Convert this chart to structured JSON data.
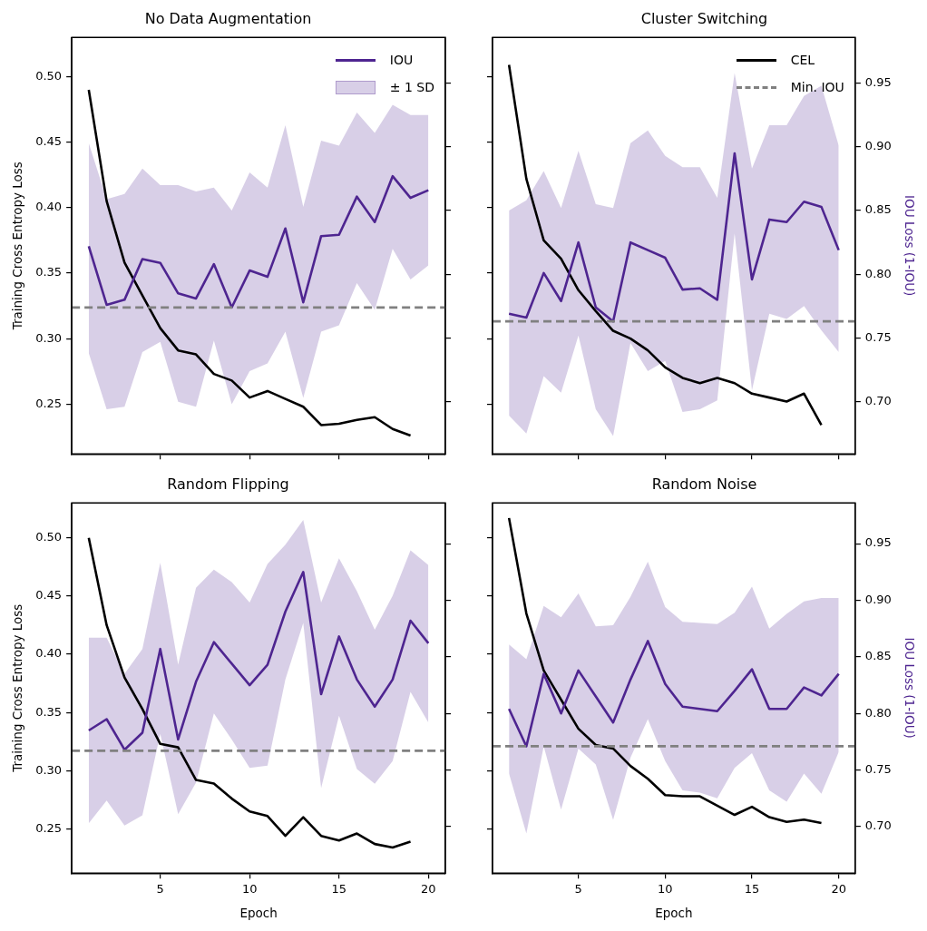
{
  "chart_data": [
    {
      "type": "line",
      "title": "No Data Augmentation",
      "ylabel": "Training Cross Entropy Loss",
      "annotations": [
        "± 1 SD"
      ],
      "x": [
        1,
        2,
        3,
        4,
        5,
        6,
        7,
        8,
        9,
        10,
        11,
        12,
        13,
        14,
        15,
        16,
        17,
        18,
        19,
        20
      ],
      "xlim": [
        0.05,
        20.95
      ],
      "ylim": [
        0.212,
        0.53
      ],
      "yticks": [
        {
          "value": 0.25,
          "label": "0.25"
        },
        {
          "value": 0.3,
          "label": "0.30"
        },
        {
          "value": 0.35,
          "label": "0.35"
        },
        {
          "value": 0.4,
          "label": "0.40"
        },
        {
          "value": 0.45,
          "label": "0.45"
        },
        {
          "value": 0.5,
          "label": "0.50"
        }
      ],
      "y2lim": [
        0.659,
        0.986
      ],
      "grid": false,
      "legend": "top right",
      "marker": "none",
      "tick_labels": "y",
      "series": [
        {
          "name": "IOU",
          "axis": "y2",
          "color": "#4e2590",
          "values": [
            0.822,
            0.776,
            0.78,
            0.812,
            0.809,
            0.785,
            0.781,
            0.808,
            0.774,
            0.803,
            0.798,
            0.836,
            0.778,
            0.83,
            0.831,
            0.861,
            0.841,
            0.877,
            0.86,
            0.866
          ],
          "lower": [
            0.738,
            0.694,
            0.696,
            0.739,
            0.747,
            0.7,
            0.696,
            0.748,
            0.698,
            0.724,
            0.73,
            0.755,
            0.703,
            0.755,
            0.76,
            0.793,
            0.772,
            0.82,
            0.796,
            0.807
          ],
          "upper": [
            0.903,
            0.859,
            0.863,
            0.883,
            0.87,
            0.87,
            0.865,
            0.868,
            0.85,
            0.88,
            0.868,
            0.917,
            0.853,
            0.905,
            0.901,
            0.927,
            0.911,
            0.933,
            0.925,
            0.925
          ]
        },
        {
          "color": "#000000",
          "x": [
            1,
            2,
            3,
            4,
            5,
            6,
            7,
            8,
            9,
            10,
            11,
            12,
            13,
            14,
            15,
            16,
            17,
            18,
            19
          ],
          "values": [
            0.49,
            0.405,
            0.358,
            0.333,
            0.308,
            0.291,
            0.288,
            0.273,
            0.268,
            0.255,
            0.26,
            0.254,
            0.248,
            0.234,
            0.235,
            0.238,
            0.24,
            0.231,
            0.226
          ]
        }
      ],
      "ref_lines": [
        {
          "axis": "y2",
          "value": 0.774,
          "color": "#808080",
          "line_style": "dashed"
        }
      ]
    },
    {
      "type": "line",
      "title": "Cluster Switching",
      "y2label": "IOU Loss (1-IOU)",
      "x": [
        1,
        2,
        3,
        4,
        5,
        6,
        7,
        8,
        9,
        10,
        11,
        12,
        13,
        14,
        15,
        16,
        17,
        18,
        19,
        20
      ],
      "xlim": [
        0.05,
        20.95
      ],
      "ylim": [
        0.212,
        0.53
      ],
      "y2lim": [
        0.659,
        0.986
      ],
      "y2ticks": [
        {
          "value": 0.7,
          "label": "0.70"
        },
        {
          "value": 0.75,
          "label": "0.75"
        },
        {
          "value": 0.8,
          "label": "0.80"
        },
        {
          "value": 0.85,
          "label": "0.85"
        },
        {
          "value": 0.9,
          "label": "0.90"
        },
        {
          "value": 0.95,
          "label": "0.95"
        }
      ],
      "grid": false,
      "legend": "top right",
      "marker": "none",
      "tick_labels": "y2",
      "series": [
        {
          "axis": "y2",
          "color": "#4e2590",
          "values": [
            0.769,
            0.766,
            0.801,
            0.779,
            0.825,
            0.774,
            0.763,
            0.825,
            0.819,
            0.813,
            0.788,
            0.789,
            0.78,
            0.895,
            0.796,
            0.843,
            0.841,
            0.857,
            0.853,
            0.819
          ],
          "lower": [
            0.689,
            0.675,
            0.72,
            0.707,
            0.752,
            0.694,
            0.673,
            0.746,
            0.724,
            0.732,
            0.692,
            0.694,
            0.701,
            0.832,
            0.709,
            0.769,
            0.765,
            0.775,
            0.756,
            0.739
          ],
          "upper": [
            0.85,
            0.858,
            0.881,
            0.852,
            0.897,
            0.855,
            0.852,
            0.903,
            0.913,
            0.893,
            0.884,
            0.884,
            0.86,
            0.958,
            0.883,
            0.917,
            0.917,
            0.94,
            0.948,
            0.901
          ]
        },
        {
          "name": "CEL",
          "color": "#000000",
          "x": [
            1,
            2,
            3,
            4,
            5,
            6,
            7,
            8,
            9,
            10,
            11,
            12,
            13,
            14,
            15,
            16,
            17,
            18,
            19
          ],
          "values": [
            0.509,
            0.422,
            0.375,
            0.361,
            0.337,
            0.321,
            0.306,
            0.3,
            0.291,
            0.278,
            0.27,
            0.266,
            0.27,
            0.266,
            0.258,
            0.255,
            0.252,
            0.258,
            0.234
          ]
        }
      ],
      "ref_lines": [
        {
          "axis": "y2",
          "value": 0.763,
          "label": "Min. IOU",
          "color": "#808080",
          "line_style": "dashed"
        }
      ]
    },
    {
      "type": "line",
      "title": "Random Flipping",
      "xlabel": "Epoch",
      "ylabel": "Training Cross Entropy Loss",
      "x": [
        1,
        2,
        3,
        4,
        5,
        6,
        7,
        8,
        9,
        10,
        11,
        12,
        13,
        14,
        15,
        16,
        17,
        18,
        19,
        20
      ],
      "xlim": [
        0.05,
        20.95
      ],
      "xticks": [
        5,
        10,
        15,
        20
      ],
      "ylim": [
        0.212,
        0.53
      ],
      "yticks": [
        {
          "value": 0.25,
          "label": "0.25"
        },
        {
          "value": 0.3,
          "label": "0.30"
        },
        {
          "value": 0.35,
          "label": "0.35"
        },
        {
          "value": 0.4,
          "label": "0.40"
        },
        {
          "value": 0.45,
          "label": "0.45"
        },
        {
          "value": 0.5,
          "label": "0.50"
        }
      ],
      "y2lim": [
        0.659,
        0.986
      ],
      "grid": false,
      "marker": "none",
      "tick_labels": [
        "x",
        "y"
      ],
      "series": [
        {
          "axis": "y2",
          "color": "#4e2590",
          "values": [
            0.785,
            0.795,
            0.768,
            0.783,
            0.857,
            0.777,
            0.828,
            0.863,
            0.844,
            0.825,
            0.843,
            0.89,
            0.925,
            0.817,
            0.868,
            0.83,
            0.806,
            0.83,
            0.882,
            0.862
          ],
          "lower": [
            0.703,
            0.723,
            0.701,
            0.71,
            0.782,
            0.711,
            0.739,
            0.8,
            0.777,
            0.752,
            0.754,
            0.83,
            0.88,
            0.734,
            0.798,
            0.751,
            0.738,
            0.758,
            0.819,
            0.792
          ],
          "upper": [
            0.867,
            0.867,
            0.835,
            0.857,
            0.933,
            0.843,
            0.911,
            0.927,
            0.916,
            0.898,
            0.932,
            0.949,
            0.971,
            0.898,
            0.937,
            0.908,
            0.874,
            0.904,
            0.944,
            0.931
          ]
        },
        {
          "color": "#000000",
          "x": [
            1,
            2,
            3,
            4,
            5,
            6,
            7,
            8,
            9,
            10,
            11,
            12,
            13,
            14,
            15,
            16,
            17,
            18,
            19
          ],
          "values": [
            0.5,
            0.425,
            0.38,
            0.353,
            0.323,
            0.32,
            0.292,
            0.289,
            0.276,
            0.265,
            0.261,
            0.244,
            0.26,
            0.244,
            0.24,
            0.246,
            0.237,
            0.234,
            0.239
          ]
        }
      ],
      "ref_lines": [
        {
          "axis": "y2",
          "value": 0.767,
          "color": "#808080",
          "line_style": "dashed"
        }
      ]
    },
    {
      "type": "line",
      "title": "Random Noise",
      "xlabel": "Epoch",
      "y2label": "IOU Loss (1-IOU)",
      "x": [
        1,
        2,
        3,
        4,
        5,
        6,
        7,
        8,
        9,
        10,
        11,
        12,
        13,
        14,
        15,
        16,
        17,
        18,
        19,
        20
      ],
      "xlim": [
        0.05,
        20.95
      ],
      "xticks": [
        5,
        10,
        15,
        20
      ],
      "ylim": [
        0.212,
        0.53
      ],
      "y2lim": [
        0.659,
        0.986
      ],
      "y2ticks": [
        {
          "value": 0.7,
          "label": "0.70"
        },
        {
          "value": 0.75,
          "label": "0.75"
        },
        {
          "value": 0.8,
          "label": "0.80"
        },
        {
          "value": 0.85,
          "label": "0.85"
        },
        {
          "value": 0.9,
          "label": "0.90"
        },
        {
          "value": 0.95,
          "label": "0.95"
        }
      ],
      "grid": false,
      "marker": "none",
      "tick_labels": [
        "x",
        "y2"
      ],
      "series": [
        {
          "axis": "y2",
          "color": "#4e2590",
          "values": [
            0.804,
            0.771,
            0.835,
            0.8,
            0.838,
            0.815,
            0.792,
            0.83,
            0.864,
            0.826,
            0.806,
            0.804,
            0.802,
            0.82,
            0.839,
            0.804,
            0.804,
            0.823,
            0.816,
            0.835
          ],
          "lower": [
            0.747,
            0.694,
            0.771,
            0.715,
            0.769,
            0.755,
            0.706,
            0.761,
            0.795,
            0.758,
            0.732,
            0.73,
            0.725,
            0.752,
            0.765,
            0.732,
            0.722,
            0.747,
            0.729,
            0.766
          ],
          "upper": [
            0.861,
            0.848,
            0.895,
            0.885,
            0.906,
            0.877,
            0.878,
            0.903,
            0.934,
            0.894,
            0.881,
            0.88,
            0.879,
            0.889,
            0.912,
            0.875,
            0.888,
            0.899,
            0.902,
            0.902
          ]
        },
        {
          "color": "#000000",
          "x": [
            1,
            2,
            3,
            4,
            5,
            6,
            7,
            8,
            9,
            10,
            11,
            12,
            13,
            14,
            15,
            16,
            17,
            18,
            19
          ],
          "values": [
            0.517,
            0.435,
            0.386,
            0.361,
            0.336,
            0.322,
            0.319,
            0.304,
            0.293,
            0.279,
            0.278,
            0.278,
            0.27,
            0.262,
            0.269,
            0.26,
            0.256,
            0.258,
            0.255
          ]
        }
      ],
      "ref_lines": [
        {
          "axis": "y2",
          "value": 0.771,
          "color": "#808080",
          "line_style": "dashed"
        }
      ]
    }
  ]
}
